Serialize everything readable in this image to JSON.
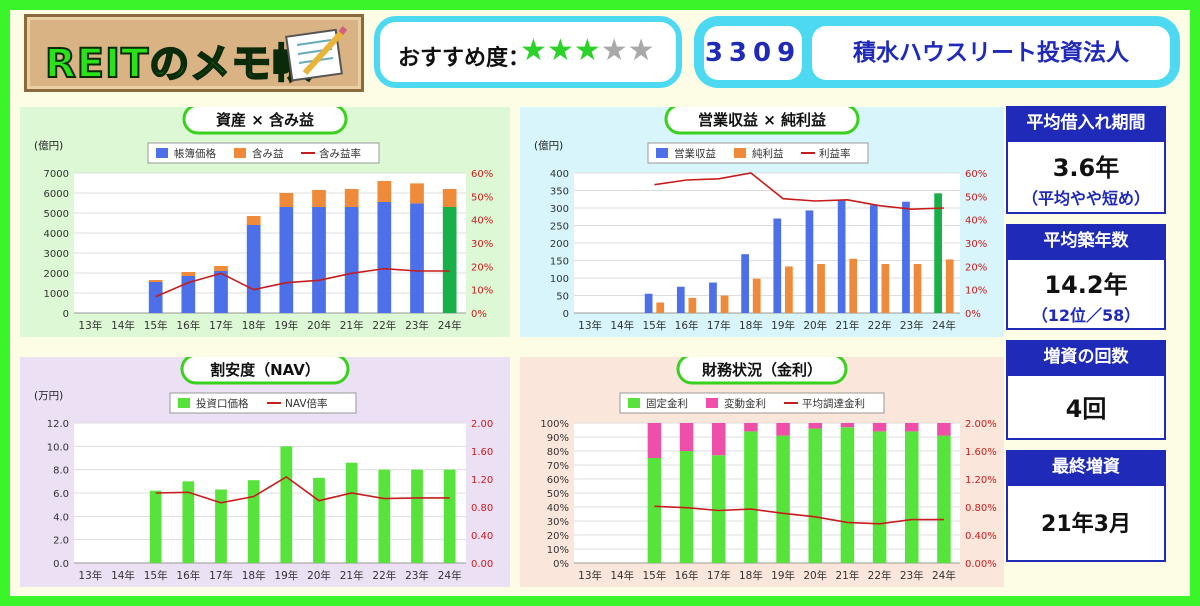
{
  "header": {
    "logo_text": "REITのメモ帳",
    "rating_label": "おすすめ度：",
    "rating_value": 3,
    "rating_max": 5,
    "code": "3309",
    "name": "積水ハウスリート投資法人"
  },
  "side": [
    {
      "label": "平均借入れ期間",
      "value": "3.6年",
      "sub": "（平均やや短め）"
    },
    {
      "label": "平均築年数",
      "value": "14.2年",
      "sub": "（12位／58）"
    },
    {
      "label": "増資の回数",
      "value": "4回",
      "sub": ""
    },
    {
      "label": "最終増資",
      "value": "21年3月",
      "sub": ""
    }
  ],
  "colors": {
    "bar_blue": "#4d6fe8",
    "bar_orange": "#ee8a3a",
    "line_red": "#c71c1c",
    "bar_green_hl": "#19b04a",
    "bar_green": "#58e33c",
    "bar_pink": "#ef4fa8",
    "panel1_bg": "#dcf8d4",
    "panel2_bg": "#d7f5fa",
    "panel3_bg": "#ece0f5",
    "panel4_bg": "#fbe6dc"
  },
  "chart_data": [
    {
      "type": "bar",
      "title": "資産 × 含み益",
      "unit_label": "(億円)",
      "stacked": true,
      "categories": [
        "13年",
        "14年",
        "15年",
        "16年",
        "17年",
        "18年",
        "19年",
        "20年",
        "21年",
        "22年",
        "23年",
        "24年"
      ],
      "series": [
        {
          "name": "帳簿価格",
          "values": [
            null,
            null,
            1550,
            1850,
            2100,
            4400,
            5300,
            5300,
            5300,
            5550,
            5480,
            5300
          ]
        },
        {
          "name": "含み益",
          "values": [
            null,
            null,
            100,
            200,
            250,
            450,
            700,
            850,
            900,
            1050,
            1000,
            900
          ]
        },
        {
          "name": "含み益率",
          "axis": "right",
          "values": [
            null,
            null,
            7,
            13,
            17,
            10,
            13,
            14,
            17,
            19,
            18,
            18
          ]
        }
      ],
      "ylim": [
        0,
        7000
      ],
      "yticks": [
        "0",
        "1000",
        "2000",
        "3000",
        "4000",
        "5000",
        "6000",
        "7000"
      ],
      "y2lim": [
        0,
        60
      ],
      "y2ticks": [
        "0%",
        "10%",
        "20%",
        "30%",
        "40%",
        "50%",
        "60%"
      ]
    },
    {
      "type": "bar",
      "title": "営業収益 × 純利益",
      "unit_label": "(億円)",
      "stacked": false,
      "categories": [
        "13年",
        "14年",
        "15年",
        "16年",
        "17年",
        "18年",
        "19年",
        "20年",
        "21年",
        "22年",
        "23年",
        "24年"
      ],
      "series": [
        {
          "name": "営業収益",
          "values": [
            null,
            null,
            55,
            75,
            87,
            168,
            270,
            293,
            322,
            308,
            318,
            342
          ]
        },
        {
          "name": "純利益",
          "values": [
            null,
            null,
            30,
            43,
            50,
            98,
            133,
            140,
            155,
            140,
            140,
            153
          ]
        },
        {
          "name": "利益率",
          "axis": "right",
          "values": [
            null,
            null,
            55,
            57,
            57.5,
            60,
            49,
            48,
            48.5,
            46,
            44.5,
            45
          ]
        }
      ],
      "ylim": [
        0,
        400
      ],
      "yticks": [
        "0",
        "50",
        "100",
        "150",
        "200",
        "250",
        "300",
        "350",
        "400"
      ],
      "y2lim": [
        0,
        60
      ],
      "y2ticks": [
        "0%",
        "10%",
        "20%",
        "30%",
        "40%",
        "50%",
        "60%"
      ]
    },
    {
      "type": "bar",
      "title": "割安度（NAV）",
      "unit_label": "(万円)",
      "stacked": false,
      "categories": [
        "13年",
        "14年",
        "15年",
        "16年",
        "17年",
        "18年",
        "19年",
        "20年",
        "21年",
        "22年",
        "23年",
        "24年"
      ],
      "series": [
        {
          "name": "投資口価格",
          "values": [
            null,
            null,
            6.2,
            7.0,
            6.3,
            7.1,
            10.0,
            7.3,
            8.6,
            8.0,
            8.0,
            8.0
          ]
        },
        {
          "name": "NAV倍率",
          "axis": "right",
          "values": [
            null,
            null,
            1.0,
            1.01,
            0.86,
            0.95,
            1.23,
            0.89,
            1.0,
            0.92,
            0.93,
            0.93
          ]
        }
      ],
      "ylim": [
        0,
        12
      ],
      "yticks": [
        "0.0",
        "2.0",
        "4.0",
        "6.0",
        "8.0",
        "10.0",
        "12.0"
      ],
      "y2lim": [
        0,
        2
      ],
      "y2ticks": [
        "0.00",
        "0.40",
        "0.80",
        "1.20",
        "1.60",
        "2.00"
      ]
    },
    {
      "type": "bar",
      "title": "財務状況（金利）",
      "unit_label": "",
      "stacked": true,
      "categories": [
        "13年",
        "14年",
        "15年",
        "16年",
        "17年",
        "18年",
        "19年",
        "20年",
        "21年",
        "22年",
        "23年",
        "24年"
      ],
      "series": [
        {
          "name": "固定金利",
          "values": [
            null,
            null,
            75,
            80,
            77,
            94,
            91,
            96,
            97,
            94,
            94,
            91
          ]
        },
        {
          "name": "変動金利",
          "values": [
            null,
            null,
            25,
            20,
            23,
            6,
            9,
            4,
            3,
            6,
            6,
            9
          ]
        },
        {
          "name": "平均調達金利",
          "axis": "right",
          "values": [
            null,
            null,
            0.81,
            0.79,
            0.75,
            0.77,
            0.71,
            0.66,
            0.58,
            0.56,
            0.62,
            0.62
          ]
        }
      ],
      "ylim": [
        0,
        100
      ],
      "yticks": [
        "0%",
        "10%",
        "20%",
        "30%",
        "40%",
        "50%",
        "60%",
        "70%",
        "80%",
        "90%",
        "100%"
      ],
      "y2lim": [
        0,
        2
      ],
      "y2ticks": [
        "0.00%",
        "0.40%",
        "0.80%",
        "1.20%",
        "1.60%",
        "2.00%"
      ]
    }
  ]
}
